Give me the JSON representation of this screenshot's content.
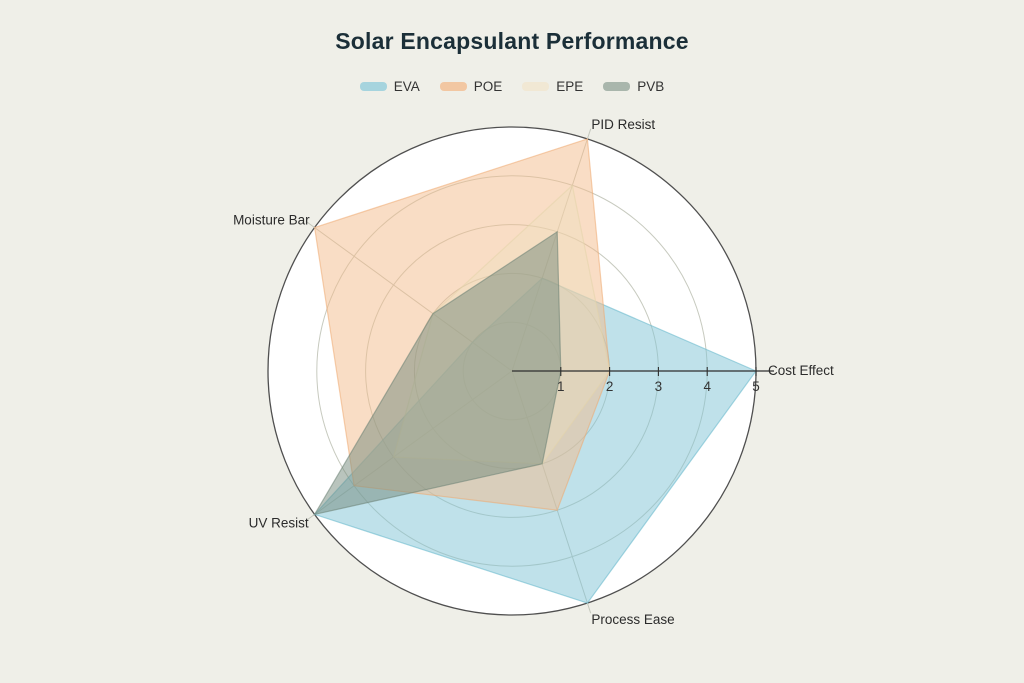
{
  "page": {
    "title": "Solar Encapsulant Performance",
    "background_color": "#efefe8",
    "title_color": "#1b2f38"
  },
  "legend": {
    "items": [
      {
        "label": "EVA",
        "swatch_color": "#a6d4de"
      },
      {
        "label": "POE",
        "swatch_color": "#f2c7a2"
      },
      {
        "label": "EPE",
        "swatch_color": "#f1e8d4"
      },
      {
        "label": "PVB",
        "swatch_color": "#a9b6ac"
      }
    ]
  },
  "chart_data": {
    "type": "radar",
    "title": "Solar Encapsulant Performance",
    "axes": [
      "Cost Effect",
      "PID Resist",
      "Moisture Bar",
      "UV Resist",
      "Process Ease"
    ],
    "rlim": [
      0,
      5
    ],
    "rticks": [
      1,
      2,
      3,
      4,
      5
    ],
    "grid": true,
    "legend_position": "top-center",
    "plot_area_color": "#ffffff",
    "series": [
      {
        "name": "EVA",
        "color": "#7fc3d6",
        "stroke": "#63b6cb",
        "fill_opacity": 0.5,
        "values": [
          5,
          2,
          1,
          5,
          5
        ]
      },
      {
        "name": "POE",
        "color": "#f4bb8c",
        "stroke": "#efa971",
        "fill_opacity": 0.5,
        "values": [
          2,
          5,
          5,
          4,
          3
        ]
      },
      {
        "name": "EPE",
        "color": "#ecdfbe",
        "stroke": "#e3d3a9",
        "fill_opacity": 0.38,
        "values": [
          2,
          4,
          2,
          3,
          2
        ]
      },
      {
        "name": "PVB",
        "color": "#74897c",
        "stroke": "#6b8174",
        "fill_opacity": 0.5,
        "values": [
          1,
          3,
          2,
          5,
          2
        ]
      }
    ]
  }
}
